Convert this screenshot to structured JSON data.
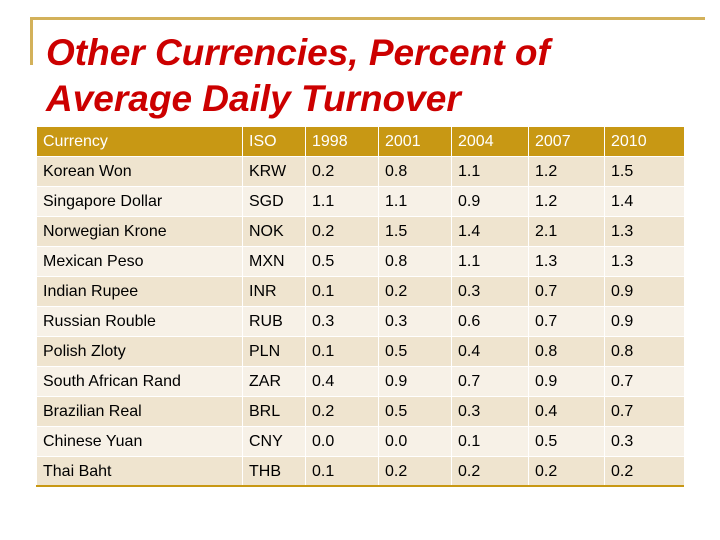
{
  "title": "Other Currencies, Percent of Average Daily Turnover",
  "table": {
    "headers": [
      "Currency",
      "ISO",
      "1998",
      "2001",
      "2004",
      "2007",
      "2010"
    ],
    "rows": [
      [
        "Korean Won",
        "KRW",
        "0.2",
        "0.8",
        "1.1",
        "1.2",
        "1.5"
      ],
      [
        "Singapore Dollar",
        "SGD",
        "1.1",
        "1.1",
        "0.9",
        "1.2",
        "1.4"
      ],
      [
        "Norwegian Krone",
        "NOK",
        "0.2",
        "1.5",
        "1.4",
        "2.1",
        "1.3"
      ],
      [
        "Mexican Peso",
        "MXN",
        "0.5",
        "0.8",
        "1.1",
        "1.3",
        "1.3"
      ],
      [
        "Indian Rupee",
        "INR",
        "0.1",
        "0.2",
        "0.3",
        "0.7",
        "0.9"
      ],
      [
        "Russian Rouble",
        "RUB",
        "0.3",
        "0.3",
        "0.6",
        "0.7",
        "0.9"
      ],
      [
        "Polish Zloty",
        "PLN",
        "0.1",
        "0.5",
        "0.4",
        "0.8",
        "0.8"
      ],
      [
        "South African Rand",
        "ZAR",
        "0.4",
        "0.9",
        "0.7",
        "0.9",
        "0.7"
      ],
      [
        "Brazilian Real",
        "BRL",
        "0.2",
        "0.5",
        "0.3",
        "0.4",
        "0.7"
      ],
      [
        "Chinese Yuan",
        "CNY",
        "0.0",
        "0.0",
        "0.1",
        "0.5",
        "0.3"
      ],
      [
        "Thai Baht",
        "THB",
        "0.1",
        "0.2",
        "0.2",
        "0.2",
        "0.2"
      ]
    ]
  },
  "colors": {
    "title": "#cc0000",
    "header_bg": "#c89814",
    "row_odd": "#efe4cf",
    "row_even": "#f7f1e7",
    "frame": "#d3b15a"
  }
}
